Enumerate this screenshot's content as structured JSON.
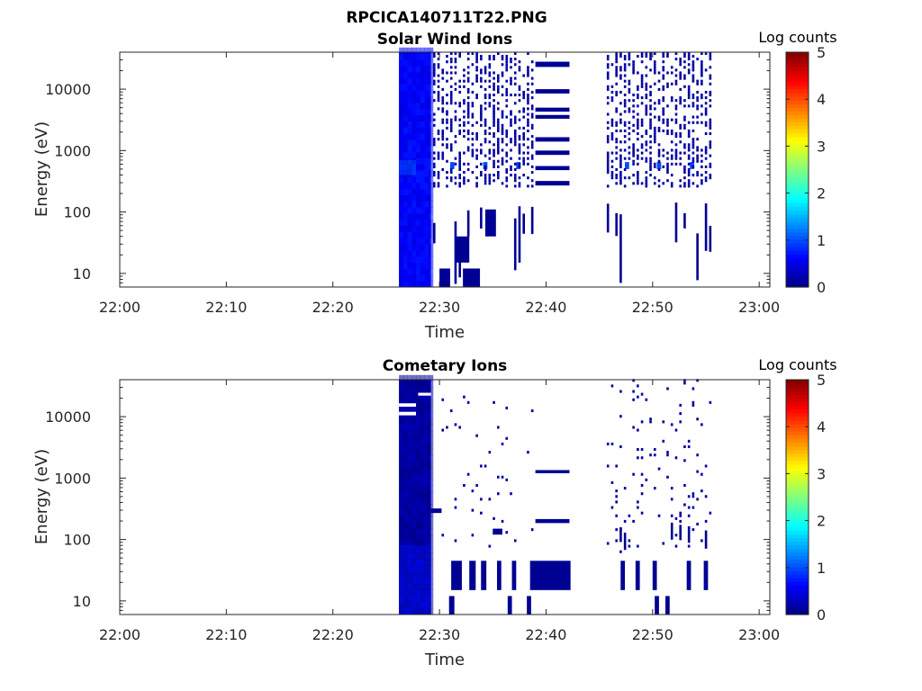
{
  "figure": {
    "title": "RPCICA140711T22.PNG"
  },
  "colors": {
    "axis": "#262626",
    "colormap": [
      "#00007f",
      "#0000ff",
      "#007fff",
      "#00ffff",
      "#7fff7f",
      "#ffff00",
      "#ff7f00",
      "#ff0000",
      "#7f0000"
    ]
  },
  "chart_data": [
    {
      "type": "heatmap",
      "title": "Solar Wind Ions",
      "xlabel": "Time",
      "ylabel": "Energy (eV)",
      "xticks": [
        "22:00",
        "22:10",
        "22:20",
        "22:30",
        "22:40",
        "22:50",
        "23:00"
      ],
      "xlim_minutes": [
        0,
        61
      ],
      "yscale": "log",
      "yticks": [
        "10",
        "100",
        "1000",
        "10000"
      ],
      "ylim": [
        6,
        40000
      ],
      "colorbar": {
        "label": "Log counts",
        "min": 0,
        "max": 5,
        "ticks": [
          "0",
          "1",
          "2",
          "3",
          "4",
          "5"
        ]
      },
      "blocks": [
        {
          "t0": 26.2,
          "t1": 29.2,
          "e0": 6,
          "e1": 40000,
          "value": 0.6
        },
        {
          "t0": 26.2,
          "t1": 27.8,
          "e0": 400,
          "e1": 700,
          "value": 1.1
        },
        {
          "t0": 30.0,
          "t1": 31.0,
          "e0": 6,
          "e1": 12,
          "value": 0.1
        },
        {
          "t0": 32.2,
          "t1": 33.8,
          "e0": 6,
          "e1": 12,
          "value": 0.1
        },
        {
          "t0": 31.5,
          "t1": 32.8,
          "e0": 15,
          "e1": 40,
          "value": 0.1
        },
        {
          "t0": 34.3,
          "t1": 35.3,
          "e0": 40,
          "e1": 110,
          "value": 0.1
        },
        {
          "t0": 39.0,
          "t1": 42.2,
          "e0": 23000,
          "e1": 28000,
          "value": 0.1
        },
        {
          "t0": 39.0,
          "t1": 42.2,
          "e0": 8500,
          "e1": 10000,
          "value": 0.1
        },
        {
          "t0": 39.0,
          "t1": 42.2,
          "e0": 4300,
          "e1": 5000,
          "value": 0.1
        },
        {
          "t0": 39.0,
          "t1": 42.2,
          "e0": 3300,
          "e1": 3800,
          "value": 0.1
        },
        {
          "t0": 39.0,
          "t1": 42.2,
          "e0": 1400,
          "e1": 1650,
          "value": 0.1
        },
        {
          "t0": 39.0,
          "t1": 42.2,
          "e0": 850,
          "e1": 1000,
          "value": 0.1
        },
        {
          "t0": 39.0,
          "t1": 42.2,
          "e0": 480,
          "e1": 560,
          "value": 0.1
        },
        {
          "t0": 39.0,
          "t1": 42.2,
          "e0": 270,
          "e1": 320,
          "value": 0.1
        },
        {
          "t0": 31.0,
          "t1": 31.4,
          "e0": 500,
          "e1": 650,
          "value": 1.0
        },
        {
          "t0": 34.1,
          "t1": 34.5,
          "e0": 500,
          "e1": 650,
          "value": 1.0
        },
        {
          "t0": 37.2,
          "t1": 37.6,
          "e0": 500,
          "e1": 650,
          "value": 1.0
        },
        {
          "t0": 47.4,
          "t1": 47.8,
          "e0": 500,
          "e1": 650,
          "value": 1.0
        },
        {
          "t0": 50.4,
          "t1": 50.8,
          "e0": 500,
          "e1": 650,
          "value": 1.0
        },
        {
          "t0": 53.5,
          "t1": 53.9,
          "e0": 500,
          "e1": 650,
          "value": 1.0
        }
      ],
      "scatter_regions": [
        {
          "t0": 29.4,
          "t1": 38.8,
          "e0": 250,
          "e1": 40000,
          "density": 0.45,
          "seed": 11
        },
        {
          "t0": 45.7,
          "t1": 55.4,
          "e0": 250,
          "e1": 40000,
          "density": 0.45,
          "seed": 23
        }
      ],
      "bar_regions": [
        {
          "t0": 29.4,
          "t1": 38.8,
          "e0": 6,
          "e1": 250,
          "density": 0.35,
          "seed": 5
        },
        {
          "t0": 45.7,
          "t1": 55.4,
          "e0": 6,
          "e1": 250,
          "density": 0.35,
          "seed": 7
        }
      ]
    },
    {
      "type": "heatmap",
      "title": "Cometary Ions",
      "xlabel": "Time",
      "ylabel": "Energy (eV)",
      "xticks": [
        "22:00",
        "22:10",
        "22:20",
        "22:30",
        "22:40",
        "22:50",
        "23:00"
      ],
      "xlim_minutes": [
        0,
        61
      ],
      "yscale": "log",
      "yticks": [
        "10",
        "100",
        "1000",
        "10000"
      ],
      "ylim": [
        6,
        40000
      ],
      "colorbar": {
        "label": "Log counts",
        "min": 0,
        "max": 5,
        "ticks": [
          "0",
          "1",
          "2",
          "3",
          "4",
          "5"
        ]
      },
      "blocks": [
        {
          "t0": 26.2,
          "t1": 29.2,
          "e0": 6,
          "e1": 40000,
          "value": 0.15
        },
        {
          "t0": 26.2,
          "t1": 29.2,
          "e0": 6,
          "e1": 80,
          "value": 0.7
        },
        {
          "t0": 29.2,
          "t1": 30.2,
          "e0": 270,
          "e1": 320,
          "value": 0.1
        },
        {
          "t0": 31.1,
          "t1": 32.1,
          "e0": 15,
          "e1": 45,
          "value": 0.1
        },
        {
          "t0": 32.8,
          "t1": 33.4,
          "e0": 15,
          "e1": 45,
          "value": 0.1
        },
        {
          "t0": 33.9,
          "t1": 34.4,
          "e0": 15,
          "e1": 45,
          "value": 0.1
        },
        {
          "t0": 35.4,
          "t1": 35.8,
          "e0": 15,
          "e1": 45,
          "value": 0.1
        },
        {
          "t0": 36.8,
          "t1": 37.2,
          "e0": 15,
          "e1": 45,
          "value": 0.1
        },
        {
          "t0": 38.5,
          "t1": 42.3,
          "e0": 15,
          "e1": 45,
          "value": 0.1
        },
        {
          "t0": 39.0,
          "t1": 42.2,
          "e0": 1200,
          "e1": 1350,
          "value": 0.1
        },
        {
          "t0": 39.0,
          "t1": 42.2,
          "e0": 185,
          "e1": 215,
          "value": 0.1
        },
        {
          "t0": 35.0,
          "t1": 35.9,
          "e0": 120,
          "e1": 150,
          "value": 0.1
        },
        {
          "t0": 30.9,
          "t1": 31.4,
          "e0": 6,
          "e1": 12,
          "value": 0.1
        },
        {
          "t0": 36.4,
          "t1": 36.8,
          "e0": 6,
          "e1": 12,
          "value": 0.1
        },
        {
          "t0": 38.2,
          "t1": 38.6,
          "e0": 6,
          "e1": 12,
          "value": 0.1
        },
        {
          "t0": 50.2,
          "t1": 50.6,
          "e0": 6,
          "e1": 12,
          "value": 0.1
        },
        {
          "t0": 51.2,
          "t1": 51.6,
          "e0": 6,
          "e1": 12,
          "value": 0.1
        },
        {
          "t0": 47.0,
          "t1": 47.4,
          "e0": 15,
          "e1": 45,
          "value": 0.1
        },
        {
          "t0": 48.4,
          "t1": 48.8,
          "e0": 15,
          "e1": 45,
          "value": 0.1
        },
        {
          "t0": 50.0,
          "t1": 50.4,
          "e0": 15,
          "e1": 45,
          "value": 0.1
        },
        {
          "t0": 53.2,
          "t1": 53.6,
          "e0": 15,
          "e1": 45,
          "value": 0.1
        },
        {
          "t0": 54.8,
          "t1": 55.2,
          "e0": 15,
          "e1": 45,
          "value": 0.1
        }
      ],
      "gaps": [
        {
          "t0": 26.2,
          "t1": 27.8,
          "e0": 14500,
          "e1": 16500
        },
        {
          "t0": 26.2,
          "t1": 27.8,
          "e0": 10500,
          "e1": 12000
        },
        {
          "t0": 28.0,
          "t1": 29.2,
          "e0": 22000,
          "e1": 24500
        }
      ],
      "scatter_regions": [
        {
          "t0": 29.4,
          "t1": 38.8,
          "e0": 60,
          "e1": 20000,
          "density": 0.035,
          "seed": 31
        },
        {
          "t0": 45.7,
          "t1": 55.4,
          "e0": 60,
          "e1": 40000,
          "density": 0.07,
          "seed": 37
        }
      ],
      "bar_regions": [
        {
          "t0": 45.7,
          "t1": 55.4,
          "e0": 60,
          "e1": 160,
          "density": 0.25,
          "seed": 41
        }
      ]
    }
  ]
}
